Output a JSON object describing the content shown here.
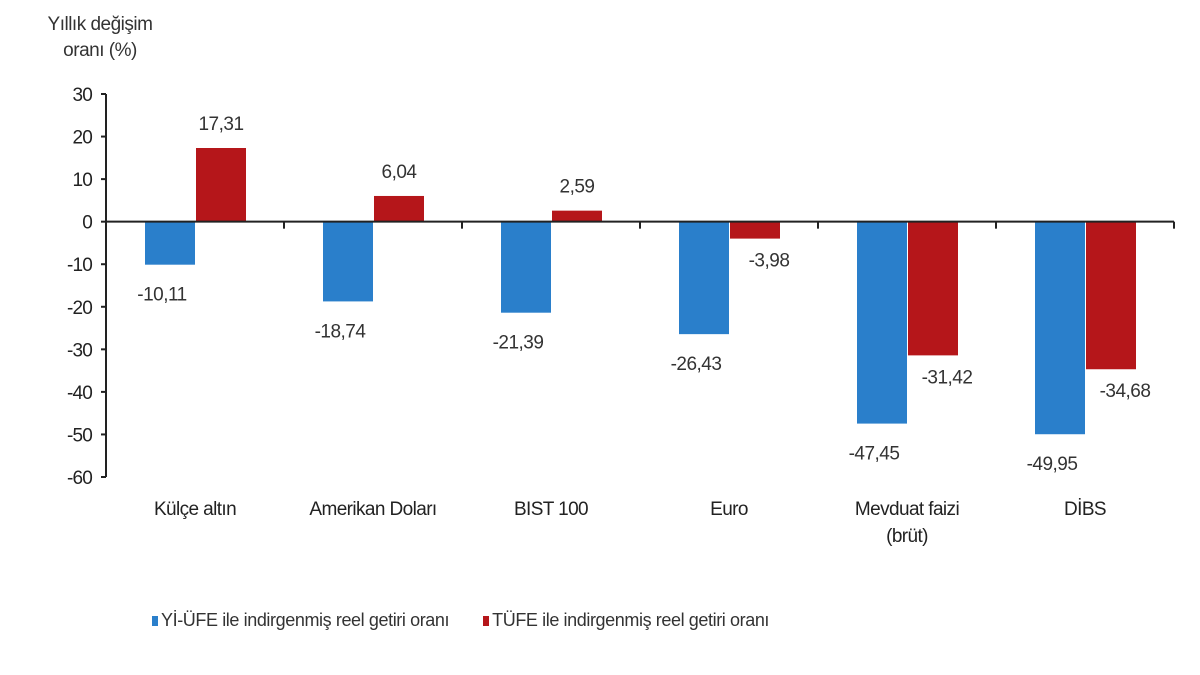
{
  "chart_data": {
    "type": "bar",
    "title": "",
    "ylabel": "Yıllık değişim oranı (%)",
    "ylabel_lines": [
      "Yıllık değişim",
      "oranı (%)"
    ],
    "xlabel": "",
    "ylim": [
      -60,
      30
    ],
    "yticks": [
      30,
      20,
      10,
      0,
      -10,
      -20,
      -30,
      -40,
      -50,
      -60
    ],
    "ytick_labels": [
      "30",
      "20",
      "10",
      "0",
      "-10",
      "-20",
      "-30",
      "-40",
      "-50",
      "-60"
    ],
    "grid": false,
    "legend_position": "bottom",
    "categories": [
      "Külçe altın",
      "Amerikan Doları",
      "BIST 100",
      "Euro",
      "Mevduat faizi (brüt)",
      "DİBS"
    ],
    "category_lines": [
      [
        "Külçe altın"
      ],
      [
        "Amerikan Doları"
      ],
      [
        "BIST 100"
      ],
      [
        "Euro"
      ],
      [
        "Mevduat faizi",
        "(brüt)"
      ],
      [
        "DİBS"
      ]
    ],
    "series": [
      {
        "name": "Yİ-ÜFE ile indirgenmiş reel getiri oranı",
        "color": "#2a7fcb",
        "values": [
          -10.11,
          -18.74,
          -21.39,
          -26.43,
          -47.45,
          -49.95
        ],
        "labels": [
          "-10,11",
          "-18,74",
          "-21,39",
          "-26,43",
          "-47,45",
          "-49,95"
        ]
      },
      {
        "name": "TÜFE ile indirgenmiş reel getiri oranı",
        "color": "#b5161a",
        "values": [
          17.31,
          6.04,
          2.59,
          -3.98,
          -31.42,
          -34.68
        ],
        "labels": [
          "17,31",
          "6,04",
          "2,59",
          "-3,98",
          "-31,42",
          "-34,68"
        ]
      }
    ]
  }
}
